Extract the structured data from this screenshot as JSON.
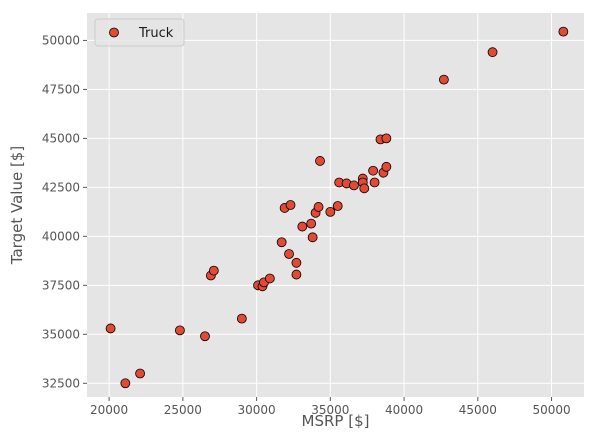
{
  "chart_data": {
    "type": "scatter",
    "xlabel": "MSRP [$]",
    "ylabel": "Target Value [$]",
    "xlim": [
      18500,
      52200
    ],
    "ylim": [
      31800,
      51400
    ],
    "xticks": [
      20000,
      25000,
      30000,
      35000,
      40000,
      45000,
      50000
    ],
    "yticks": [
      32500,
      35000,
      37500,
      40000,
      42500,
      45000,
      47500,
      50000
    ],
    "grid": true,
    "legend_position": "top-left",
    "colors": {
      "background": "#e5e5e5",
      "grid": "#ffffff",
      "marker_fill": "#e24a33",
      "marker_edge": "#000000"
    },
    "series": [
      {
        "name": "Truck",
        "points": [
          [
            20100,
            35300
          ],
          [
            21100,
            32500
          ],
          [
            22100,
            33000
          ],
          [
            24800,
            35200
          ],
          [
            26500,
            34900
          ],
          [
            26900,
            38000
          ],
          [
            27100,
            38250
          ],
          [
            29000,
            35800
          ],
          [
            30100,
            37500
          ],
          [
            30400,
            37450
          ],
          [
            30500,
            37650
          ],
          [
            30900,
            37850
          ],
          [
            31700,
            39700
          ],
          [
            31900,
            41450
          ],
          [
            32200,
            39100
          ],
          [
            32300,
            41600
          ],
          [
            32700,
            38050
          ],
          [
            32700,
            38650
          ],
          [
            33100,
            40500
          ],
          [
            33700,
            40650
          ],
          [
            33800,
            39950
          ],
          [
            34000,
            41200
          ],
          [
            34200,
            41500
          ],
          [
            34300,
            43850
          ],
          [
            35000,
            41250
          ],
          [
            35500,
            41550
          ],
          [
            35600,
            42750
          ],
          [
            36100,
            42700
          ],
          [
            36600,
            42600
          ],
          [
            37200,
            42950
          ],
          [
            37200,
            42750
          ],
          [
            37300,
            42450
          ],
          [
            37900,
            43350
          ],
          [
            38000,
            42750
          ],
          [
            38400,
            44950
          ],
          [
            38600,
            43250
          ],
          [
            38800,
            45000
          ],
          [
            38800,
            43550
          ],
          [
            42700,
            48000
          ],
          [
            46000,
            49400
          ],
          [
            50800,
            50450
          ]
        ]
      }
    ]
  }
}
